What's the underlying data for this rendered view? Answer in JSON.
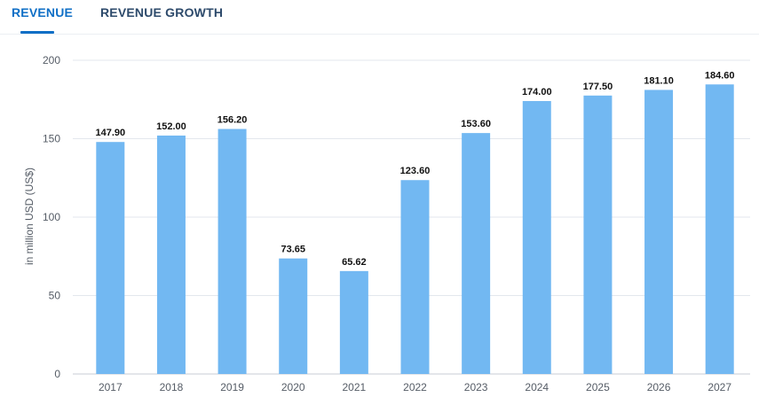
{
  "tabs": [
    {
      "label": "REVENUE",
      "active": true
    },
    {
      "label": "REVENUE GROWTH",
      "active": false
    }
  ],
  "colors": {
    "accent": "#0f6fc6",
    "bar": "#72b8f2",
    "grid": "#e3e7ed"
  },
  "chart_data": {
    "type": "bar",
    "categories": [
      "2017",
      "2018",
      "2019",
      "2020",
      "2021",
      "2022",
      "2023",
      "2024",
      "2025",
      "2026",
      "2027"
    ],
    "values": [
      147.9,
      152.0,
      156.2,
      73.65,
      65.62,
      123.6,
      153.6,
      174.0,
      177.5,
      181.1,
      184.6
    ],
    "value_labels": [
      "147.90",
      "152.00",
      "156.20",
      "73.65",
      "65.62",
      "123.60",
      "153.60",
      "174.00",
      "177.50",
      "181.10",
      "184.60"
    ],
    "yticks": [
      "0",
      "50",
      "100",
      "150",
      "200"
    ],
    "ylabel": "in million USD (US$)",
    "ylim": [
      0,
      200
    ],
    "grid": true
  }
}
